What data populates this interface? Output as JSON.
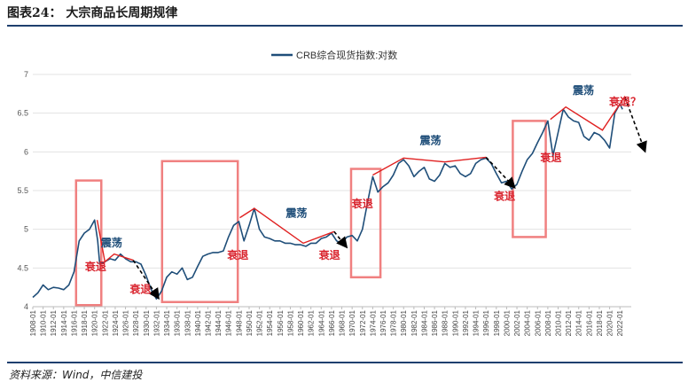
{
  "header": {
    "title": "图表24： 大宗商品长周期规律"
  },
  "footer": {
    "source": "资料来源：Wind，中信建投"
  },
  "colors": {
    "series": "#1f4e79",
    "highlight_box": "#f08080",
    "trend": "#e02020",
    "rule": "#1e3f6e"
  },
  "chart_data": {
    "type": "line",
    "title": "",
    "xlabel": "",
    "ylabel": "",
    "ylim": [
      4,
      7
    ],
    "yticks": [
      4,
      4.5,
      5,
      5.5,
      6,
      6.5,
      7
    ],
    "xlim": [
      1908,
      2024.2
    ],
    "x_tick_labels": [
      "1908-01",
      "1910-01",
      "1912-01",
      "1914-01",
      "1916-01",
      "1918-01",
      "1920-01",
      "1922-01",
      "1924-01",
      "1926-01",
      "1928-01",
      "1930-01",
      "1932-01",
      "1934-01",
      "1936-01",
      "1938-01",
      "1940-01",
      "1942-01",
      "1944-01",
      "1946-01",
      "1948-01",
      "1950-01",
      "1952-01",
      "1954-01",
      "1956-01",
      "1958-01",
      "1960-01",
      "1962-01",
      "1964-01",
      "1966-01",
      "1968-01",
      "1970-01",
      "1972-01",
      "1974-01",
      "1976-01",
      "1978-01",
      "1980-01",
      "1982-01",
      "1984-01",
      "1986-01",
      "1988-01",
      "1990-01",
      "1992-01",
      "1994-01",
      "1996-01",
      "1998-01",
      "2000-01",
      "2002-01",
      "2004-01",
      "2006-01",
      "2008-01",
      "2010-01",
      "2012-01",
      "2014-01",
      "2016-01",
      "2018-01",
      "2020-01",
      "2022-01"
    ],
    "grid": true,
    "legend": {
      "position": "top-center",
      "label": "CRB综合现货指数:对数"
    },
    "series": [
      {
        "name": "CRB综合现货指数:对数",
        "points": [
          [
            1908,
            4.12
          ],
          [
            1909,
            4.18
          ],
          [
            1910,
            4.28
          ],
          [
            1911,
            4.22
          ],
          [
            1912,
            4.25
          ],
          [
            1913,
            4.24
          ],
          [
            1914,
            4.22
          ],
          [
            1915,
            4.28
          ],
          [
            1916,
            4.45
          ],
          [
            1917,
            4.85
          ],
          [
            1918,
            4.95
          ],
          [
            1919,
            5.0
          ],
          [
            1920,
            5.12
          ],
          [
            1920.6,
            4.85
          ],
          [
            1921,
            4.55
          ],
          [
            1922,
            4.58
          ],
          [
            1923,
            4.62
          ],
          [
            1924,
            4.6
          ],
          [
            1925,
            4.68
          ],
          [
            1926,
            4.62
          ],
          [
            1927,
            4.58
          ],
          [
            1928,
            4.58
          ],
          [
            1929,
            4.55
          ],
          [
            1930,
            4.4
          ],
          [
            1931,
            4.22
          ],
          [
            1932,
            4.1
          ],
          [
            1933,
            4.2
          ],
          [
            1934,
            4.38
          ],
          [
            1935,
            4.45
          ],
          [
            1936,
            4.42
          ],
          [
            1937,
            4.5
          ],
          [
            1938,
            4.35
          ],
          [
            1939,
            4.38
          ],
          [
            1940,
            4.52
          ],
          [
            1941,
            4.65
          ],
          [
            1942,
            4.68
          ],
          [
            1943,
            4.7
          ],
          [
            1944,
            4.7
          ],
          [
            1945,
            4.72
          ],
          [
            1946,
            4.9
          ],
          [
            1947,
            5.05
          ],
          [
            1948,
            5.1
          ],
          [
            1949,
            4.85
          ],
          [
            1950,
            5.05
          ],
          [
            1951,
            5.27
          ],
          [
            1952,
            5.0
          ],
          [
            1953,
            4.9
          ],
          [
            1954,
            4.88
          ],
          [
            1955,
            4.85
          ],
          [
            1956,
            4.85
          ],
          [
            1957,
            4.82
          ],
          [
            1958,
            4.82
          ],
          [
            1959,
            4.8
          ],
          [
            1960,
            4.8
          ],
          [
            1961,
            4.78
          ],
          [
            1962,
            4.82
          ],
          [
            1963,
            4.82
          ],
          [
            1964,
            4.88
          ],
          [
            1965,
            4.9
          ],
          [
            1966,
            4.95
          ],
          [
            1967,
            4.85
          ],
          [
            1968,
            4.82
          ],
          [
            1969,
            4.9
          ],
          [
            1970,
            4.92
          ],
          [
            1971,
            4.85
          ],
          [
            1972,
            5.0
          ],
          [
            1973,
            5.35
          ],
          [
            1974,
            5.68
          ],
          [
            1975,
            5.48
          ],
          [
            1976,
            5.55
          ],
          [
            1977,
            5.6
          ],
          [
            1978,
            5.7
          ],
          [
            1979,
            5.85
          ],
          [
            1980,
            5.9
          ],
          [
            1981,
            5.82
          ],
          [
            1982,
            5.68
          ],
          [
            1983,
            5.75
          ],
          [
            1984,
            5.8
          ],
          [
            1985,
            5.65
          ],
          [
            1986,
            5.62
          ],
          [
            1987,
            5.7
          ],
          [
            1988,
            5.85
          ],
          [
            1989,
            5.8
          ],
          [
            1990,
            5.82
          ],
          [
            1991,
            5.72
          ],
          [
            1992,
            5.68
          ],
          [
            1993,
            5.72
          ],
          [
            1994,
            5.85
          ],
          [
            1995,
            5.9
          ],
          [
            1996,
            5.92
          ],
          [
            1997,
            5.85
          ],
          [
            1998,
            5.72
          ],
          [
            1999,
            5.6
          ],
          [
            2000,
            5.62
          ],
          [
            2001,
            5.52
          ],
          [
            2002,
            5.58
          ],
          [
            2003,
            5.75
          ],
          [
            2004,
            5.9
          ],
          [
            2005,
            5.98
          ],
          [
            2006,
            6.12
          ],
          [
            2007,
            6.25
          ],
          [
            2008,
            6.4
          ],
          [
            2009,
            5.95
          ],
          [
            2010,
            6.25
          ],
          [
            2011,
            6.55
          ],
          [
            2012,
            6.45
          ],
          [
            2013,
            6.4
          ],
          [
            2014,
            6.38
          ],
          [
            2015,
            6.2
          ],
          [
            2016,
            6.15
          ],
          [
            2017,
            6.25
          ],
          [
            2018,
            6.22
          ],
          [
            2019,
            6.15
          ],
          [
            2020,
            6.05
          ],
          [
            2021,
            6.5
          ],
          [
            2022,
            6.62
          ],
          [
            2022.5,
            6.55
          ]
        ]
      }
    ],
    "annotations": [
      {
        "text": "震荡",
        "x": 1923.3,
        "y": 4.78,
        "color": "blue"
      },
      {
        "text": "衰退",
        "x": 1920.2,
        "y": 4.47,
        "color": "red"
      },
      {
        "text": "衰退",
        "x": 1928.9,
        "y": 4.18,
        "color": "red"
      },
      {
        "text": "震荡",
        "x": 1959.2,
        "y": 5.16,
        "color": "blue"
      },
      {
        "text": "衰退",
        "x": 1947.8,
        "y": 4.62,
        "color": "red"
      },
      {
        "text": "衰退",
        "x": 1965.6,
        "y": 4.62,
        "color": "red"
      },
      {
        "text": "震荡",
        "x": 1985.2,
        "y": 6.1,
        "color": "blue"
      },
      {
        "text": "衰退",
        "x": 1972.0,
        "y": 5.28,
        "color": "red"
      },
      {
        "text": "衰退",
        "x": 1999.6,
        "y": 5.38,
        "color": "red"
      },
      {
        "text": "震荡",
        "x": 2014.9,
        "y": 6.75,
        "color": "blue"
      },
      {
        "text": "衰退",
        "x": 2008.6,
        "y": 5.88,
        "color": "red"
      },
      {
        "text": "衰退？",
        "x": 2023.0,
        "y": 6.6,
        "color": "red"
      }
    ],
    "highlight_boxes": [
      {
        "x0": 1916.4,
        "x1": 1921.3,
        "y0": 4.02,
        "y1": 5.63
      },
      {
        "x0": 1933.1,
        "x1": 1947.8,
        "y0": 4.06,
        "y1": 5.88
      },
      {
        "x0": 1969.8,
        "x1": 1975.5,
        "y0": 4.38,
        "y1": 5.78
      },
      {
        "x0": 2001.2,
        "x1": 2007.6,
        "y0": 4.9,
        "y1": 6.4
      }
    ],
    "trend_lines": [
      {
        "points": [
          [
            1920.5,
            5.12
          ],
          [
            1922.0,
            4.58
          ]
        ]
      },
      {
        "points": [
          [
            1922.0,
            4.58
          ],
          [
            1923.8,
            4.68
          ],
          [
            1927.5,
            4.6
          ]
        ]
      },
      {
        "points": [
          [
            1948.2,
            5.15
          ],
          [
            1951.0,
            5.27
          ],
          [
            1960.5,
            4.82
          ],
          [
            1966.5,
            4.97
          ]
        ]
      },
      {
        "points": [
          [
            1974.0,
            5.7
          ],
          [
            1980.0,
            5.92
          ],
          [
            1988.0,
            5.87
          ],
          [
            1996.0,
            5.93
          ]
        ]
      },
      {
        "points": [
          [
            2008.5,
            6.42
          ],
          [
            2011.5,
            6.58
          ],
          [
            2018.6,
            6.28
          ],
          [
            2023.0,
            6.72
          ]
        ]
      }
    ],
    "trend_arrows": [
      {
        "from": [
          1927.5,
          4.6
        ],
        "to": [
          1932.3,
          4.12
        ]
      },
      {
        "from": [
          1966.5,
          4.97
        ],
        "to": [
          1968.8,
          4.78
        ]
      },
      {
        "from": [
          1996.0,
          5.93
        ],
        "to": [
          2001.4,
          5.55
        ]
      },
      {
        "from": [
          2023.0,
          6.7
        ],
        "to": [
          2026.8,
          6.02
        ]
      }
    ]
  }
}
